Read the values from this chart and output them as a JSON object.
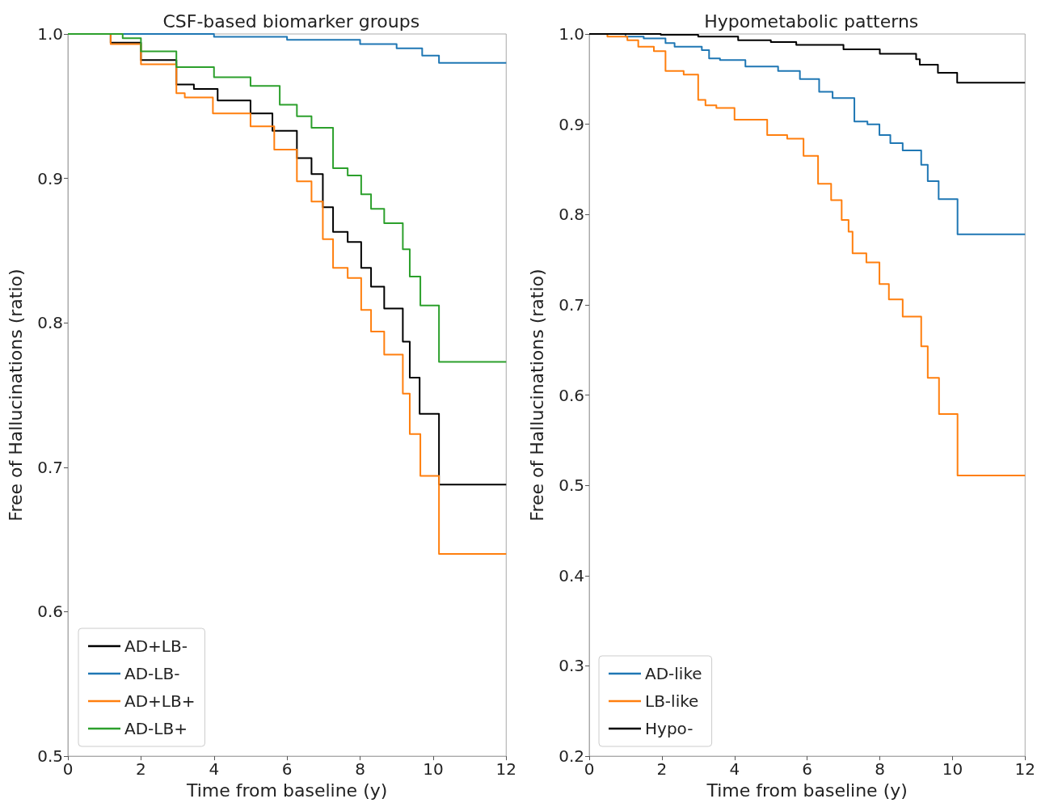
{
  "chart_data": [
    {
      "type": "step",
      "title": "CSF-based biomarker groups",
      "xlabel": "Time from baseline (y)",
      "ylabel": "Free of Hallucinations (ratio)",
      "xlim": [
        0,
        12
      ],
      "xticks": [
        0,
        2,
        4,
        6,
        8,
        10,
        12
      ],
      "ylim": [
        0.5,
        1.0
      ],
      "yticks": [
        0.5,
        0.6,
        0.7,
        0.8,
        0.9,
        {
          "value": 1.0,
          "label": "1.0"
        }
      ],
      "grid": false,
      "legend": "bottom left",
      "marker": "none",
      "line_style": "solid",
      "series": [
        {
          "name": "AD+LB-",
          "color": "#000000",
          "x": [
            0,
            1.17,
            2.0,
            2.97,
            3.45,
            4.1,
            5.0,
            5.6,
            6.27,
            6.67,
            6.98,
            7.26,
            7.66,
            8.03,
            8.3,
            8.66,
            9.17,
            9.36,
            9.63,
            10.16,
            12
          ],
          "values": [
            1.0,
            0.994,
            0.982,
            0.965,
            0.962,
            0.954,
            0.945,
            0.933,
            0.914,
            0.903,
            0.88,
            0.863,
            0.856,
            0.838,
            0.825,
            0.81,
            0.787,
            0.762,
            0.737,
            0.688,
            0.688
          ]
        },
        {
          "name": "AD-LB-",
          "color": "#1f77b4",
          "x": [
            0,
            4,
            6,
            8,
            9,
            9.7,
            10.16,
            12
          ],
          "values": [
            1.0,
            0.998,
            0.996,
            0.993,
            0.99,
            0.985,
            0.98,
            0.98
          ]
        },
        {
          "name": "AD+LB+",
          "color": "#ff7f0e",
          "x": [
            0,
            1.17,
            2.0,
            2.97,
            3.2,
            3.97,
            5.0,
            5.65,
            6.27,
            6.67,
            6.98,
            7.26,
            7.66,
            8.03,
            8.3,
            8.66,
            9.17,
            9.36,
            9.65,
            10.16,
            12
          ],
          "values": [
            1.0,
            0.993,
            0.979,
            0.959,
            0.956,
            0.945,
            0.936,
            0.92,
            0.898,
            0.884,
            0.858,
            0.838,
            0.831,
            0.809,
            0.794,
            0.778,
            0.751,
            0.723,
            0.694,
            0.64,
            0.64
          ]
        },
        {
          "name": "AD-LB+",
          "color": "#2ca02c",
          "x": [
            0,
            1.5,
            2.0,
            2.97,
            4.0,
            5.0,
            5.8,
            6.27,
            6.67,
            7.26,
            7.66,
            8.03,
            8.3,
            8.66,
            9.17,
            9.36,
            9.65,
            10.16,
            12
          ],
          "values": [
            1.0,
            0.997,
            0.988,
            0.977,
            0.97,
            0.964,
            0.951,
            0.943,
            0.935,
            0.907,
            0.902,
            0.889,
            0.879,
            0.869,
            0.851,
            0.832,
            0.812,
            0.773,
            0.773
          ]
        }
      ]
    },
    {
      "type": "step",
      "title": "Hypometabolic patterns",
      "xlabel": "Time from baseline (y)",
      "ylabel": "Free of Hallucinations (ratio)",
      "xlim": [
        0,
        12
      ],
      "xticks": [
        0,
        2,
        4,
        6,
        8,
        10,
        12
      ],
      "ylim": [
        0.2,
        1.0
      ],
      "yticks": [
        0.2,
        0.3,
        0.4,
        0.5,
        0.6,
        0.7,
        0.8,
        0.9,
        {
          "value": 1.0,
          "label": "1.0"
        }
      ],
      "grid": false,
      "legend": "bottom left",
      "marker": "none",
      "line_style": "solid",
      "series": [
        {
          "name": "AD-like",
          "color": "#1f77b4",
          "x": [
            0,
            1.0,
            1.5,
            2.1,
            2.35,
            3.1,
            3.3,
            3.6,
            4.3,
            5.2,
            5.8,
            6.33,
            6.7,
            7.3,
            7.66,
            7.99,
            8.29,
            8.63,
            9.14,
            9.32,
            9.62,
            10.14,
            12
          ],
          "values": [
            1.0,
            0.997,
            0.995,
            0.99,
            0.986,
            0.982,
            0.973,
            0.971,
            0.964,
            0.959,
            0.95,
            0.936,
            0.929,
            0.903,
            0.9,
            0.888,
            0.879,
            0.871,
            0.855,
            0.837,
            0.817,
            0.778,
            0.778
          ]
        },
        {
          "name": "LB-like",
          "color": "#ff7f0e",
          "x": [
            0,
            0.5,
            1.05,
            1.35,
            1.78,
            2.1,
            2.6,
            3.0,
            3.2,
            3.5,
            4.0,
            4.9,
            5.45,
            5.9,
            6.3,
            6.66,
            6.95,
            7.14,
            7.25,
            7.63,
            7.99,
            8.25,
            8.63,
            9.14,
            9.32,
            9.63,
            10.14,
            12
          ],
          "values": [
            1.0,
            0.997,
            0.993,
            0.986,
            0.981,
            0.959,
            0.955,
            0.927,
            0.921,
            0.918,
            0.905,
            0.888,
            0.884,
            0.865,
            0.834,
            0.816,
            0.794,
            0.781,
            0.757,
            0.747,
            0.723,
            0.706,
            0.687,
            0.654,
            0.619,
            0.579,
            0.511,
            0.511
          ]
        },
        {
          "name": "Hypo-",
          "color": "#000000",
          "x": [
            0,
            1.97,
            3.0,
            4.1,
            5.0,
            5.7,
            7.0,
            8.0,
            9.0,
            9.1,
            9.6,
            10.13,
            12
          ],
          "values": [
            1.0,
            0.999,
            0.997,
            0.993,
            0.991,
            0.988,
            0.983,
            0.978,
            0.972,
            0.966,
            0.957,
            0.946,
            0.946
          ]
        }
      ]
    }
  ]
}
